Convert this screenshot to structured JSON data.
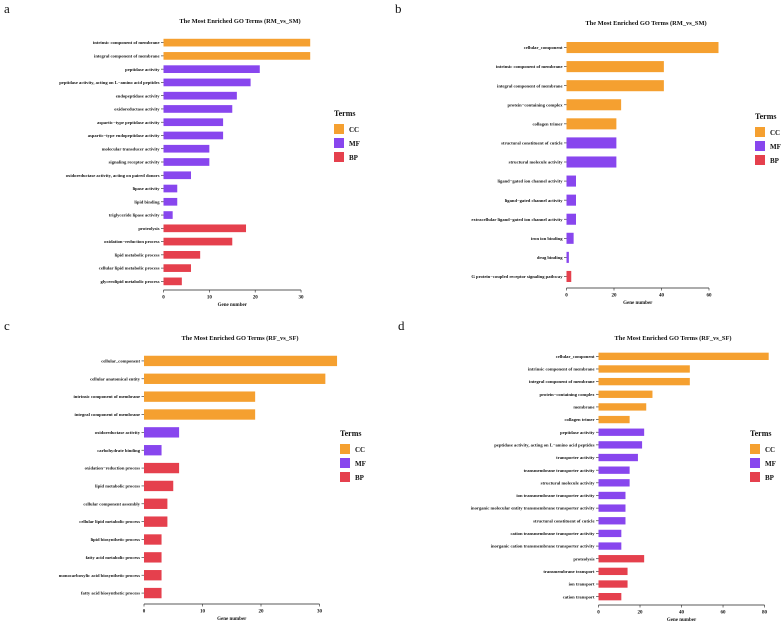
{
  "colors": {
    "CC": "#F5A030",
    "MF": "#8846EE",
    "BP": "#E5404D",
    "axis": "#222222"
  },
  "legend": {
    "title": "Terms",
    "items": [
      {
        "key": "CC",
        "label": "CC"
      },
      {
        "key": "MF",
        "label": "MF"
      },
      {
        "key": "BP",
        "label": "BP"
      }
    ]
  },
  "chart_data": [
    {
      "panel": "a",
      "type": "bar",
      "orientation": "horizontal",
      "title": "The Most Enriched GO Terms (RM_vs_SM)",
      "xlabel": "Gene number",
      "xlim": [
        0,
        33.7
      ],
      "xticks": [
        0,
        10,
        20,
        30
      ],
      "legend_position": "right",
      "categories": [
        "intrinsic component of membrane",
        "integral component of membrane",
        "peptidase activity",
        "peptidase activity, acting on L−amino acid peptides",
        "endopeptidase activity",
        "oxidoreductase activity",
        "aspartic−type peptidase activity",
        "aspartic−type endopeptidase activity",
        "molecular transducer activity",
        "signaling receptor activity",
        "oxidoreductase activity, acting on paired donors",
        "lipase activity",
        "lipid binding",
        "triglyceride lipase activity",
        "proteolysis",
        "oxidation−reduction process",
        "lipid metabolic process",
        "cellular lipid metabolic process",
        "glycerolipid metabolic process"
      ],
      "values": [
        32,
        32,
        21,
        19,
        16,
        15,
        13,
        13,
        10,
        10,
        6,
        3,
        3,
        2,
        18,
        15,
        8,
        6,
        4
      ],
      "groups": [
        "CC",
        "CC",
        "MF",
        "MF",
        "MF",
        "MF",
        "MF",
        "MF",
        "MF",
        "MF",
        "MF",
        "MF",
        "MF",
        "MF",
        "BP",
        "BP",
        "BP",
        "BP",
        "BP"
      ]
    },
    {
      "panel": "b",
      "type": "bar",
      "orientation": "horizontal",
      "title": "The Most Enriched GO Terms (RM_vs_SM)",
      "xlabel": "Gene number",
      "xlim": [
        0,
        68
      ],
      "xticks": [
        0,
        20,
        40,
        60
      ],
      "legend_position": "right",
      "categories": [
        "cellular_component",
        "intrinsic component of membrane",
        "integral component of membrane",
        "protein−containing complex",
        "collagen trimer",
        "structural constituent of cuticle",
        "structural molecule activity",
        "ligand−gated ion channel activity",
        "ligand−gated channel activity",
        "extracellular ligand−gated ion channel activity",
        "iron ion binding",
        "drug binding",
        "G protein−coupled receptor signaling pathway"
      ],
      "values": [
        64,
        41,
        41,
        23,
        21,
        21,
        21,
        4,
        4,
        4,
        3,
        1,
        2
      ],
      "groups": [
        "CC",
        "CC",
        "CC",
        "CC",
        "CC",
        "MF",
        "MF",
        "MF",
        "MF",
        "MF",
        "MF",
        "MF",
        "BP"
      ]
    },
    {
      "panel": "c",
      "type": "bar",
      "orientation": "horizontal",
      "title": "The Most Enriched GO Terms (RF_vs_SF)",
      "xlabel": "Gene number",
      "xlim": [
        0,
        34.7
      ],
      "xticks": [
        0,
        10,
        20,
        30
      ],
      "legend_position": "right",
      "categories": [
        "cellular_component",
        "cellular anatomical entity",
        "intrinsic component of membrane",
        "integral component of membrane",
        "oxidoreductase activity",
        "carbohydrate binding",
        "oxidation−reduction process",
        "lipid metabolic process",
        "cellular component assembly",
        "cellular lipid metabolic process",
        "lipid biosynthetic process",
        "fatty acid metabolic process",
        "monocarboxylic acid biosynthetic process",
        "fatty acid biosynthetic process"
      ],
      "values": [
        33,
        31,
        19,
        19,
        6,
        3,
        6,
        5,
        4,
        4,
        3,
        3,
        3,
        3
      ],
      "groups": [
        "CC",
        "CC",
        "CC",
        "CC",
        "MF",
        "MF",
        "BP",
        "BP",
        "BP",
        "BP",
        "BP",
        "BP",
        "BP",
        "BP"
      ]
    },
    {
      "panel": "d",
      "type": "bar",
      "orientation": "horizontal",
      "title": "The Most Enriched GO Terms (RF_vs_SF)",
      "xlabel": "Gene number",
      "xlim": [
        0,
        86
      ],
      "xticks": [
        0,
        20,
        40,
        60,
        80
      ],
      "legend_position": "right",
      "categories": [
        "cellular_component",
        "intrinsic component of membrane",
        "integral component of membrane",
        "protein−containing complex",
        "membrane",
        "collagen trimer",
        "peptidase activity",
        "peptidase activity, acting on L−amino acid peptides",
        "transporter activity",
        "transmembrane transporter activity",
        "structural molecule activity",
        "ion transmembrane transporter activity",
        "inorganic molecular entity transmembrane transporter activity",
        "structural constituent of cuticle",
        "cation transmembrane transporter activity",
        "inorganic cation transmembrane transporter activity",
        "proteolysis",
        "transmembrane transport",
        "ion transport",
        "cation transport"
      ],
      "values": [
        82,
        44,
        44,
        26,
        23,
        15,
        22,
        21,
        19,
        15,
        15,
        13,
        13,
        13,
        11,
        11,
        22,
        14,
        14,
        11
      ],
      "groups": [
        "CC",
        "CC",
        "CC",
        "CC",
        "CC",
        "CC",
        "MF",
        "MF",
        "MF",
        "MF",
        "MF",
        "MF",
        "MF",
        "MF",
        "MF",
        "MF",
        "BP",
        "BP",
        "BP",
        "BP"
      ]
    }
  ]
}
